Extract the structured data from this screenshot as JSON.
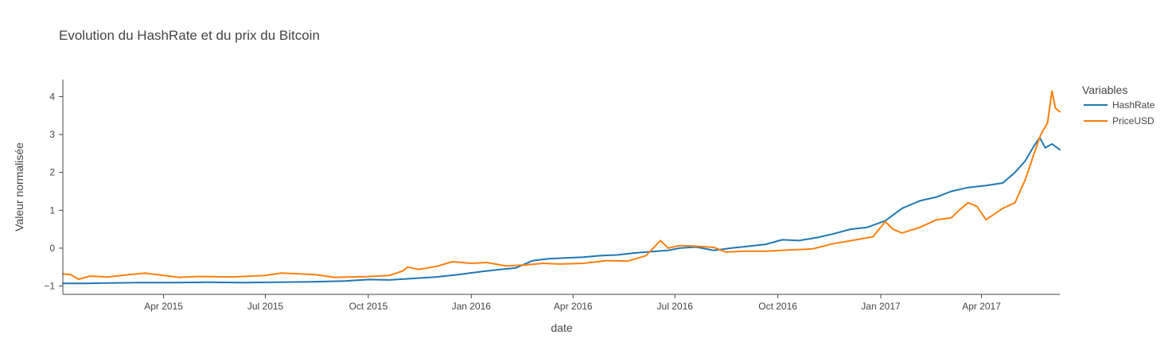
{
  "chart_data": {
    "type": "line",
    "title": "Evolution du HashRate et du prix du Bitcoin",
    "xlabel": "date",
    "ylabel": "Valeur normalisée",
    "xlim": [
      "2015-01-01",
      "2017-06-10"
    ],
    "ylim": [
      -1.22,
      4.45
    ],
    "x_ticks": [
      {
        "value": "2015-04-01",
        "label": "Apr 2015"
      },
      {
        "value": "2015-07-01",
        "label": "Jul 2015"
      },
      {
        "value": "2015-10-01",
        "label": "Oct 2015"
      },
      {
        "value": "2016-01-01",
        "label": "Jan 2016"
      },
      {
        "value": "2016-04-01",
        "label": "Apr 2016"
      },
      {
        "value": "2016-07-01",
        "label": "Jul 2016"
      },
      {
        "value": "2016-10-01",
        "label": "Oct 2016"
      },
      {
        "value": "2017-01-01",
        "label": "Jan 2017"
      },
      {
        "value": "2017-04-01",
        "label": "Apr 2017"
      }
    ],
    "y_ticks": [
      {
        "value": -1,
        "label": "−1"
      },
      {
        "value": 0,
        "label": "0"
      },
      {
        "value": 1,
        "label": "1"
      },
      {
        "value": 2,
        "label": "2"
      },
      {
        "value": 3,
        "label": "3"
      },
      {
        "value": 4,
        "label": "4"
      }
    ],
    "grid": false,
    "legend": {
      "title": "Variables",
      "position": "top-right"
    },
    "series": [
      {
        "name": "HashRate",
        "color": "#1f77b4",
        "x": [
          "2015-01-01",
          "2015-01-20",
          "2015-02-10",
          "2015-03-10",
          "2015-04-10",
          "2015-05-10",
          "2015-06-10",
          "2015-07-10",
          "2015-08-10",
          "2015-09-10",
          "2015-10-01",
          "2015-10-20",
          "2015-11-10",
          "2015-12-01",
          "2015-12-20",
          "2016-01-10",
          "2016-01-25",
          "2016-02-10",
          "2016-02-25",
          "2016-03-10",
          "2016-03-25",
          "2016-04-10",
          "2016-04-25",
          "2016-05-10",
          "2016-05-25",
          "2016-06-10",
          "2016-06-25",
          "2016-07-05",
          "2016-07-20",
          "2016-08-05",
          "2016-08-20",
          "2016-09-05",
          "2016-09-20",
          "2016-10-05",
          "2016-10-20",
          "2016-11-05",
          "2016-11-20",
          "2016-12-05",
          "2016-12-20",
          "2017-01-05",
          "2017-01-20",
          "2017-02-05",
          "2017-02-20",
          "2017-03-05",
          "2017-03-20",
          "2017-04-05",
          "2017-04-20",
          "2017-05-01",
          "2017-05-10",
          "2017-05-18",
          "2017-05-23",
          "2017-05-28",
          "2017-06-03",
          "2017-06-10"
        ],
        "y": [
          -0.93,
          -0.93,
          -0.92,
          -0.91,
          -0.91,
          -0.9,
          -0.91,
          -0.9,
          -0.89,
          -0.87,
          -0.83,
          -0.84,
          -0.8,
          -0.76,
          -0.7,
          -0.62,
          -0.57,
          -0.52,
          -0.33,
          -0.28,
          -0.26,
          -0.24,
          -0.2,
          -0.18,
          -0.13,
          -0.09,
          -0.06,
          0.0,
          0.03,
          -0.06,
          0.0,
          0.05,
          0.1,
          0.22,
          0.2,
          0.28,
          0.38,
          0.5,
          0.55,
          0.72,
          1.05,
          1.25,
          1.35,
          1.5,
          1.6,
          1.65,
          1.72,
          2.0,
          2.3,
          2.7,
          2.92,
          2.65,
          2.75,
          2.6
        ]
      },
      {
        "name": "PriceUSD",
        "color": "#ff7f0e",
        "x": [
          "2015-01-01",
          "2015-01-08",
          "2015-01-15",
          "2015-01-25",
          "2015-02-10",
          "2015-03-01",
          "2015-03-15",
          "2015-04-01",
          "2015-04-15",
          "2015-05-01",
          "2015-06-01",
          "2015-07-01",
          "2015-07-15",
          "2015-08-01",
          "2015-08-15",
          "2015-09-01",
          "2015-10-01",
          "2015-10-20",
          "2015-11-01",
          "2015-11-05",
          "2015-11-15",
          "2015-12-01",
          "2015-12-15",
          "2016-01-01",
          "2016-01-15",
          "2016-02-01",
          "2016-02-20",
          "2016-03-05",
          "2016-03-20",
          "2016-04-10",
          "2016-05-01",
          "2016-05-20",
          "2016-06-05",
          "2016-06-18",
          "2016-06-25",
          "2016-07-05",
          "2016-07-20",
          "2016-08-05",
          "2016-08-15",
          "2016-09-01",
          "2016-09-20",
          "2016-10-10",
          "2016-11-01",
          "2016-11-20",
          "2016-12-10",
          "2016-12-25",
          "2017-01-05",
          "2017-01-12",
          "2017-01-20",
          "2017-02-05",
          "2017-02-20",
          "2017-03-05",
          "2017-03-12",
          "2017-03-20",
          "2017-03-28",
          "2017-04-05",
          "2017-04-20",
          "2017-05-01",
          "2017-05-10",
          "2017-05-18",
          "2017-05-24",
          "2017-05-30",
          "2017-06-03",
          "2017-06-06",
          "2017-06-10"
        ],
        "y": [
          -0.68,
          -0.7,
          -0.82,
          -0.74,
          -0.76,
          -0.7,
          -0.66,
          -0.72,
          -0.77,
          -0.75,
          -0.76,
          -0.72,
          -0.66,
          -0.68,
          -0.7,
          -0.77,
          -0.75,
          -0.72,
          -0.6,
          -0.5,
          -0.56,
          -0.48,
          -0.36,
          -0.4,
          -0.38,
          -0.47,
          -0.44,
          -0.4,
          -0.42,
          -0.4,
          -0.33,
          -0.34,
          -0.2,
          0.2,
          0.0,
          0.07,
          0.05,
          0.02,
          -0.1,
          -0.08,
          -0.08,
          -0.05,
          -0.02,
          0.12,
          0.22,
          0.3,
          0.7,
          0.5,
          0.4,
          0.55,
          0.75,
          0.8,
          1.0,
          1.2,
          1.1,
          0.75,
          1.05,
          1.2,
          1.8,
          2.5,
          3.0,
          3.3,
          4.15,
          3.7,
          3.6
        ]
      }
    ]
  }
}
